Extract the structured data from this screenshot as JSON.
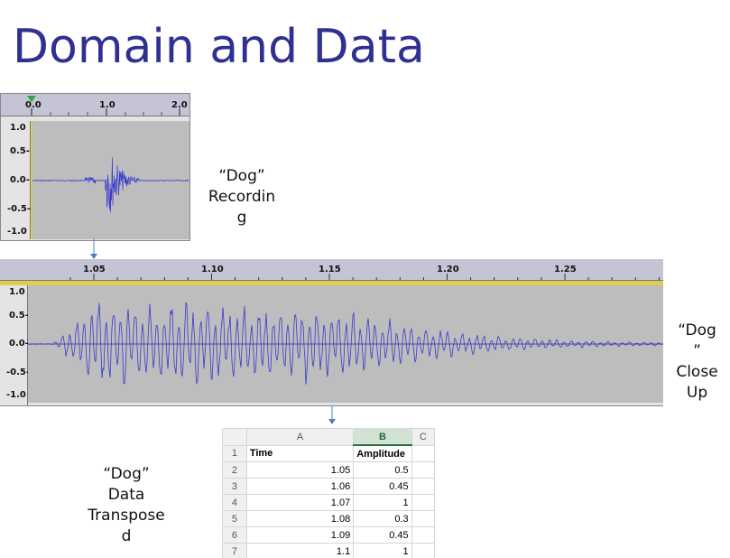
{
  "title": "Domain and Data",
  "captions": {
    "recording": "“Dog”\nRecordin\ng",
    "closeup": "“Dog\n”\nClose\nUp",
    "data": "“Dog”\nData\nTranspose\nd"
  },
  "top_track": {
    "ruler_labels": [
      "0.0",
      "1.0",
      "2.0"
    ],
    "y_labels": [
      "1.0",
      "0.5-",
      "0.0-",
      "-0.5-",
      "-1.0"
    ]
  },
  "zoom_track": {
    "ruler_labels": [
      "1.05",
      "1.10",
      "1.15",
      "1.20",
      "1.25"
    ],
    "y_labels": [
      "1.0",
      "0.5-",
      "0.0-",
      "-0.5-",
      "-1.0"
    ]
  },
  "spreadsheet": {
    "columns": [
      "A",
      "B",
      "C"
    ],
    "header_row": {
      "num": "1",
      "a": "Time",
      "b": "Amplitude"
    },
    "rows": [
      {
        "num": "2",
        "a": "1.05",
        "b": "0.5"
      },
      {
        "num": "3",
        "a": "1.06",
        "b": "0.45"
      },
      {
        "num": "4",
        "a": "1.07",
        "b": "1"
      },
      {
        "num": "5",
        "a": "1.08",
        "b": "0.3"
      },
      {
        "num": "6",
        "a": "1.09",
        "b": "0.45"
      },
      {
        "num": "7",
        "a": "1.1",
        "b": "1"
      }
    ]
  },
  "colors": {
    "title": "#2e3192",
    "waveform": "#3a3ad0",
    "track": "#bdbdbd",
    "ruler": "#c4c4d4",
    "playhead": "#2aa84a",
    "selection_line": "#d8d050"
  }
}
